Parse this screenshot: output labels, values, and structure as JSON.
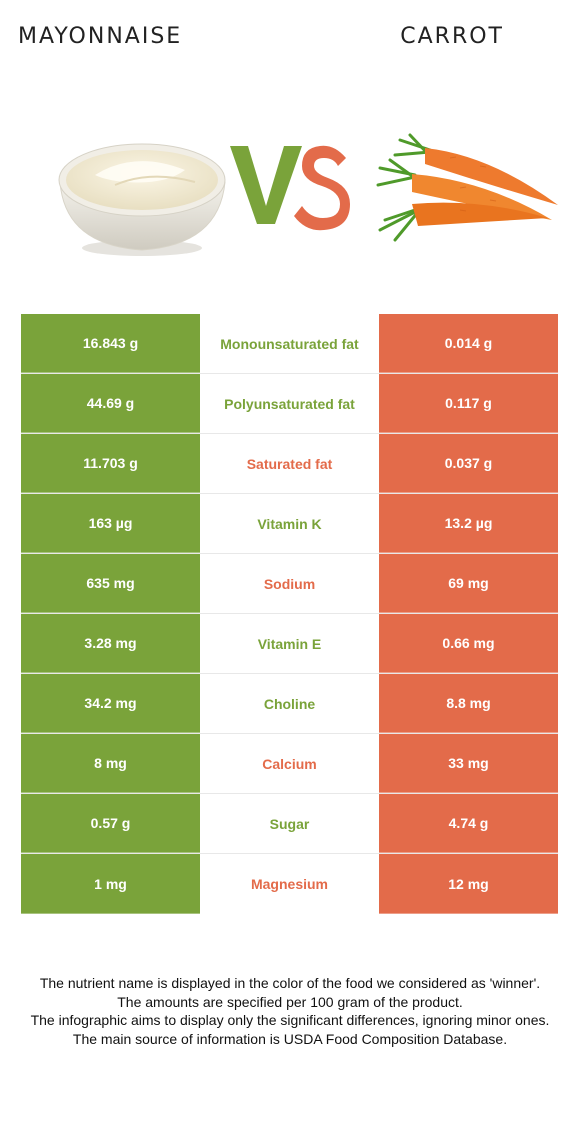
{
  "header": {
    "left_food": "MAYONNAISE",
    "right_food": "CARROT"
  },
  "vs": {
    "v": "V",
    "s": "S"
  },
  "colors": {
    "left": "#7aa33a",
    "right": "#e36b4a"
  },
  "rows": [
    {
      "left": "16.843 g",
      "nutrient": "Monounsaturated fat",
      "right": "0.014 g",
      "winner": "left"
    },
    {
      "left": "44.69 g",
      "nutrient": "Polyunsaturated fat",
      "right": "0.117 g",
      "winner": "left"
    },
    {
      "left": "11.703 g",
      "nutrient": "Saturated fat",
      "right": "0.037 g",
      "winner": "right"
    },
    {
      "left": "163 µg",
      "nutrient": "Vitamin K",
      "right": "13.2 µg",
      "winner": "left"
    },
    {
      "left": "635 mg",
      "nutrient": "Sodium",
      "right": "69 mg",
      "winner": "right"
    },
    {
      "left": "3.28 mg",
      "nutrient": "Vitamin E",
      "right": "0.66 mg",
      "winner": "left"
    },
    {
      "left": "34.2 mg",
      "nutrient": "Choline",
      "right": "8.8 mg",
      "winner": "left"
    },
    {
      "left": "8 mg",
      "nutrient": "Calcium",
      "right": "33 mg",
      "winner": "right"
    },
    {
      "left": "0.57 g",
      "nutrient": "Sugar",
      "right": "4.74 g",
      "winner": "left"
    },
    {
      "left": "1 mg",
      "nutrient": "Magnesium",
      "right": "12 mg",
      "winner": "right"
    }
  ],
  "footer": {
    "line1": "The nutrient name is displayed in the color of the food we considered as 'winner'.",
    "line2": "The amounts are specified per 100 gram of the product.",
    "line3": "The infographic aims to display only the significant differences, ignoring minor ones.",
    "line4": "The main source of information is USDA Food Composition Database."
  }
}
